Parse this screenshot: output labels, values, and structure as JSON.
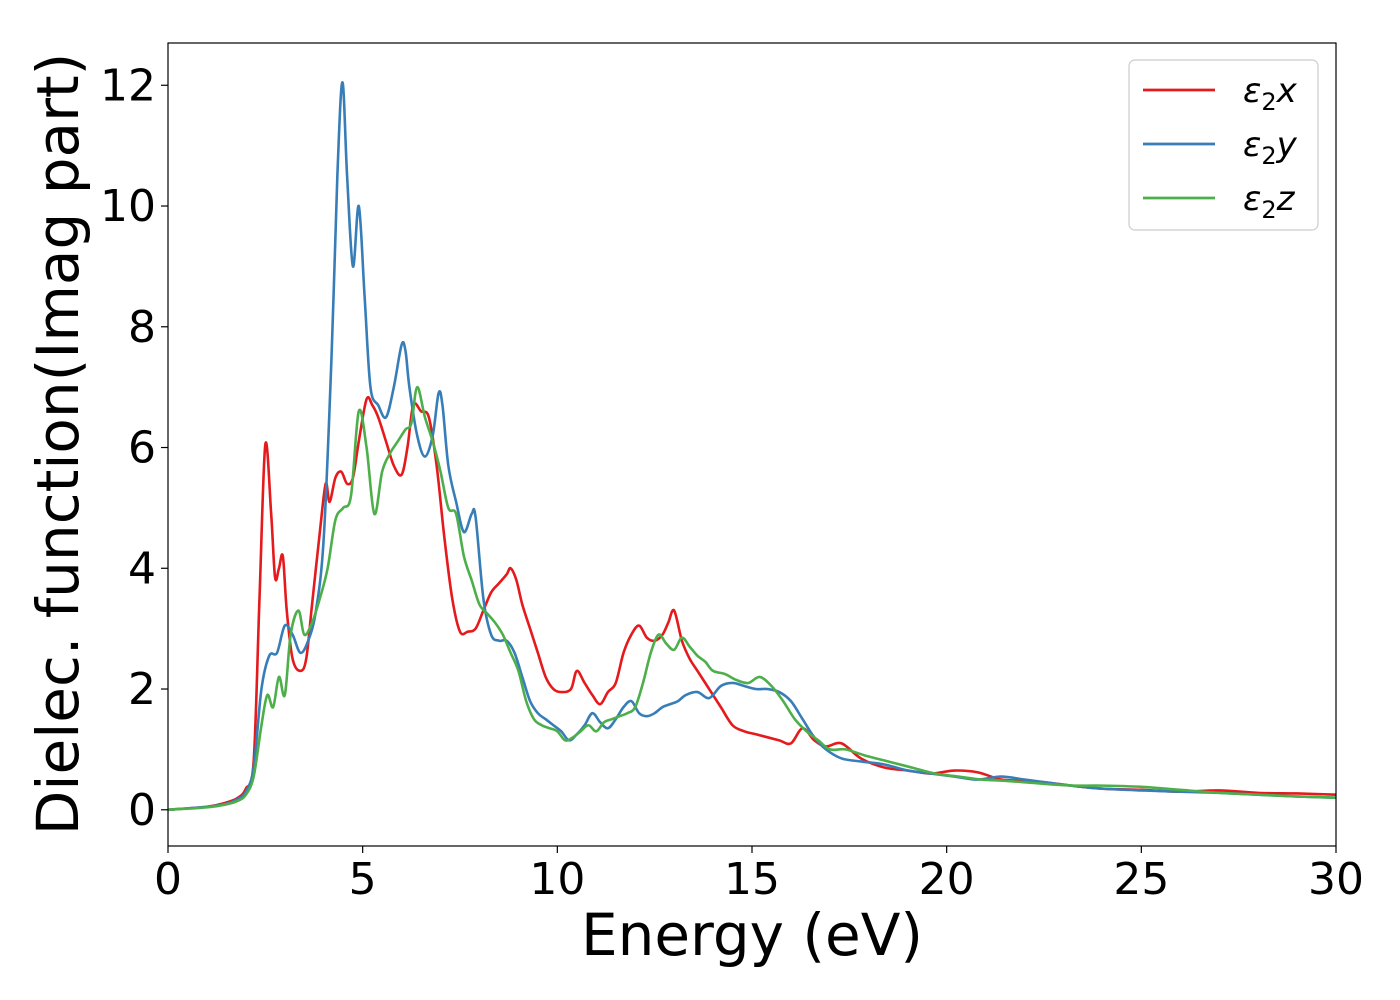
{
  "chart_data": {
    "type": "line",
    "xlabel": "Energy (eV)",
    "ylabel": "Dielec. function(Imag part)",
    "xlim": [
      0,
      30
    ],
    "ylim": [
      -0.6,
      12.7
    ],
    "x_ticks": [
      0,
      5,
      10,
      15,
      20,
      25,
      30
    ],
    "x_tick_labels": [
      "0",
      "5",
      "10",
      "15",
      "20",
      "25",
      "30"
    ],
    "y_ticks": [
      0,
      2,
      4,
      6,
      8,
      10,
      12
    ],
    "y_tick_labels": [
      "0",
      "2",
      "4",
      "6",
      "8",
      "10",
      "12"
    ],
    "grid": false,
    "legend": "top-right",
    "series": [
      {
        "name": "ε2x",
        "legend_symbol": "ε",
        "legend_sub": "2",
        "legend_var": "x",
        "color": "#e41a1c",
        "x": [
          0,
          1.0,
          1.5,
          1.8,
          2.0,
          2.2,
          2.35,
          2.5,
          2.65,
          2.75,
          2.85,
          2.95,
          3.05,
          3.2,
          3.4,
          3.55,
          3.7,
          3.9,
          4.05,
          4.15,
          4.3,
          4.45,
          4.6,
          4.75,
          4.9,
          5.1,
          5.25,
          5.4,
          5.6,
          5.8,
          6.0,
          6.15,
          6.3,
          6.5,
          6.7,
          6.9,
          7.1,
          7.3,
          7.5,
          7.7,
          7.9,
          8.1,
          8.3,
          8.5,
          8.7,
          8.8,
          8.95,
          9.1,
          9.3,
          9.5,
          9.7,
          9.9,
          10.1,
          10.35,
          10.5,
          10.7,
          10.9,
          11.1,
          11.3,
          11.5,
          11.7,
          11.9,
          12.1,
          12.3,
          12.5,
          12.7,
          12.85,
          13.0,
          13.2,
          13.4,
          13.6,
          13.9,
          14.2,
          14.5,
          14.8,
          15.1,
          15.4,
          15.7,
          16.0,
          16.3,
          16.6,
          16.9,
          17.3,
          17.8,
          18.4,
          19.0,
          19.6,
          20.2,
          20.8,
          21.4,
          22.0,
          22.6,
          23.2,
          24.0,
          25.0,
          26.0,
          27.0,
          28.0,
          29.0,
          30.0
        ],
        "values": [
          0,
          0.05,
          0.12,
          0.2,
          0.35,
          0.8,
          3.5,
          6.05,
          4.9,
          3.85,
          4.0,
          4.2,
          3.3,
          2.5,
          2.3,
          2.5,
          3.4,
          4.6,
          5.4,
          5.1,
          5.5,
          5.6,
          5.4,
          5.5,
          6.1,
          6.8,
          6.7,
          6.5,
          6.1,
          5.7,
          5.55,
          6.0,
          6.7,
          6.6,
          6.5,
          5.7,
          4.5,
          3.5,
          2.95,
          2.95,
          3.0,
          3.3,
          3.6,
          3.75,
          3.9,
          4.0,
          3.8,
          3.4,
          3.0,
          2.6,
          2.2,
          2.0,
          1.95,
          2.0,
          2.3,
          2.1,
          1.9,
          1.75,
          1.95,
          2.1,
          2.6,
          2.9,
          3.05,
          2.85,
          2.8,
          2.9,
          3.1,
          3.3,
          2.8,
          2.5,
          2.3,
          2.0,
          1.7,
          1.4,
          1.3,
          1.25,
          1.2,
          1.15,
          1.1,
          1.35,
          1.15,
          1.05,
          1.1,
          0.85,
          0.7,
          0.65,
          0.6,
          0.65,
          0.62,
          0.5,
          0.48,
          0.45,
          0.4,
          0.35,
          0.33,
          0.3,
          0.32,
          0.28,
          0.27,
          0.25
        ]
      },
      {
        "name": "ε2y",
        "legend_symbol": "ε",
        "legend_sub": "2",
        "legend_var": "y",
        "color": "#377eb8",
        "x": [
          0,
          1.0,
          1.5,
          1.8,
          2.0,
          2.2,
          2.4,
          2.6,
          2.8,
          3.0,
          3.2,
          3.4,
          3.6,
          3.8,
          4.0,
          4.2,
          4.35,
          4.48,
          4.6,
          4.75,
          4.9,
          5.05,
          5.2,
          5.4,
          5.6,
          5.8,
          6.0,
          6.1,
          6.2,
          6.4,
          6.6,
          6.8,
          6.95,
          7.05,
          7.2,
          7.4,
          7.6,
          7.8,
          7.9,
          8.1,
          8.3,
          8.5,
          8.7,
          8.9,
          9.1,
          9.3,
          9.5,
          9.7,
          9.9,
          10.1,
          10.3,
          10.5,
          10.7,
          10.9,
          11.1,
          11.3,
          11.5,
          11.7,
          11.9,
          12.1,
          12.3,
          12.5,
          12.7,
          12.9,
          13.1,
          13.3,
          13.6,
          13.9,
          14.2,
          14.5,
          14.8,
          15.1,
          15.4,
          15.7,
          16.0,
          16.3,
          16.6,
          16.9,
          17.3,
          17.8,
          18.4,
          19.0,
          19.6,
          20.2,
          20.8,
          21.4,
          22.0,
          22.6,
          23.2,
          24.0,
          25.0,
          26.0,
          27.0,
          28.0,
          29.0,
          30.0
        ],
        "values": [
          0,
          0.05,
          0.1,
          0.18,
          0.3,
          0.7,
          2.0,
          2.55,
          2.6,
          3.05,
          2.9,
          2.6,
          2.8,
          3.3,
          4.5,
          7.5,
          10.5,
          12.05,
          10.5,
          9.0,
          10.0,
          8.5,
          7.0,
          6.7,
          6.5,
          7.0,
          7.7,
          7.6,
          7.0,
          6.2,
          5.85,
          6.2,
          6.9,
          6.7,
          5.7,
          5.1,
          4.6,
          4.9,
          4.85,
          3.5,
          2.9,
          2.8,
          2.8,
          2.6,
          2.2,
          1.8,
          1.6,
          1.5,
          1.4,
          1.3,
          1.15,
          1.25,
          1.4,
          1.6,
          1.45,
          1.35,
          1.5,
          1.7,
          1.8,
          1.6,
          1.55,
          1.6,
          1.7,
          1.75,
          1.8,
          1.9,
          1.95,
          1.85,
          2.05,
          2.1,
          2.05,
          2.0,
          2.0,
          1.95,
          1.8,
          1.5,
          1.2,
          1.0,
          0.85,
          0.8,
          0.75,
          0.65,
          0.6,
          0.55,
          0.5,
          0.55,
          0.5,
          0.45,
          0.4,
          0.35,
          0.32,
          0.3,
          0.28,
          0.25,
          0.22,
          0.2
        ]
      },
      {
        "name": "ε2z",
        "legend_symbol": "ε",
        "legend_sub": "2",
        "legend_var": "z",
        "color": "#4daf4a",
        "x": [
          0,
          1.0,
          1.5,
          1.8,
          2.0,
          2.2,
          2.4,
          2.55,
          2.7,
          2.85,
          3.0,
          3.15,
          3.35,
          3.5,
          3.7,
          3.9,
          4.1,
          4.3,
          4.5,
          4.7,
          4.9,
          5.1,
          5.3,
          5.5,
          5.7,
          5.9,
          6.1,
          6.25,
          6.4,
          6.6,
          6.8,
          7.0,
          7.2,
          7.4,
          7.6,
          7.8,
          8.0,
          8.2,
          8.4,
          8.6,
          8.8,
          9.0,
          9.2,
          9.4,
          9.6,
          9.8,
          10.0,
          10.2,
          10.4,
          10.6,
          10.8,
          11.0,
          11.2,
          11.4,
          11.6,
          11.8,
          12.0,
          12.2,
          12.4,
          12.6,
          12.8,
          13.0,
          13.2,
          13.4,
          13.6,
          13.8,
          14.0,
          14.3,
          14.6,
          14.9,
          15.2,
          15.5,
          15.8,
          16.1,
          16.4,
          16.7,
          17.0,
          17.4,
          17.9,
          18.5,
          19.1,
          19.7,
          20.3,
          20.9,
          21.5,
          22.1,
          22.7,
          23.3,
          24.0,
          25.0,
          26.0,
          27.0,
          28.0,
          29.0,
          30.0
        ],
        "values": [
          0,
          0.04,
          0.09,
          0.15,
          0.25,
          0.55,
          1.4,
          1.9,
          1.7,
          2.2,
          1.9,
          2.9,
          3.3,
          2.9,
          3.1,
          3.5,
          4.0,
          4.8,
          5.0,
          5.2,
          6.6,
          6.0,
          4.9,
          5.6,
          5.9,
          6.1,
          6.3,
          6.4,
          7.0,
          6.5,
          6.1,
          5.6,
          5.0,
          4.9,
          4.2,
          3.8,
          3.4,
          3.25,
          3.1,
          2.9,
          2.6,
          2.3,
          1.8,
          1.5,
          1.4,
          1.35,
          1.3,
          1.15,
          1.2,
          1.3,
          1.4,
          1.3,
          1.45,
          1.5,
          1.55,
          1.6,
          1.7,
          2.1,
          2.6,
          2.9,
          2.75,
          2.65,
          2.85,
          2.7,
          2.55,
          2.45,
          2.3,
          2.25,
          2.15,
          2.1,
          2.2,
          2.05,
          1.8,
          1.5,
          1.3,
          1.15,
          1.0,
          1.0,
          0.9,
          0.8,
          0.7,
          0.6,
          0.55,
          0.5,
          0.48,
          0.45,
          0.42,
          0.4,
          0.4,
          0.38,
          0.33,
          0.28,
          0.25,
          0.22,
          0.2
        ]
      }
    ]
  }
}
